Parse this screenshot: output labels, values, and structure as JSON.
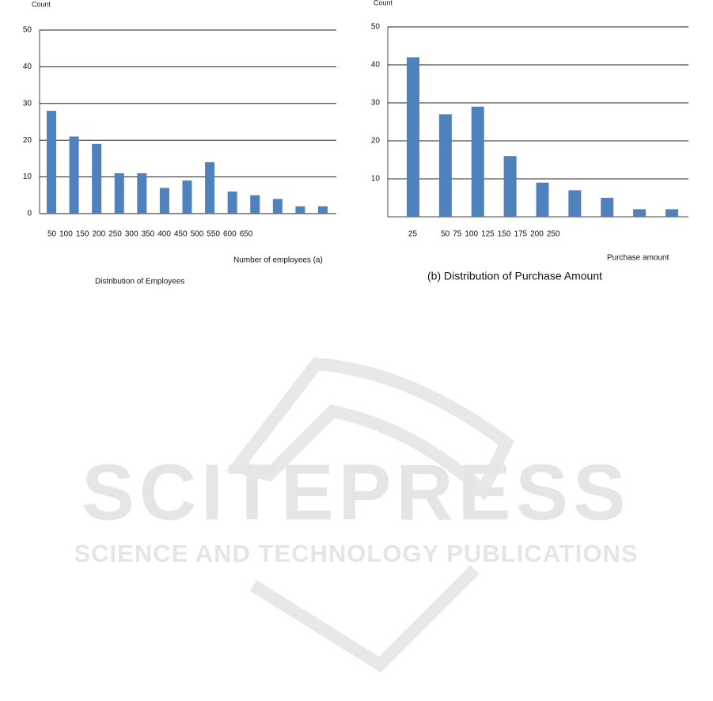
{
  "chart_data": [
    {
      "type": "bar",
      "y_label": "Count",
      "x_label": "Number of employees (a)",
      "caption": "Distribution of Employees",
      "categories": [
        "50",
        "100",
        "150",
        "200",
        "250",
        "300",
        "350",
        "400",
        "450",
        "500",
        "550",
        "600",
        "650"
      ],
      "values": [
        28,
        21,
        19,
        11,
        11,
        7,
        9,
        14,
        6,
        5,
        4,
        2,
        2
      ],
      "color": "#4f81bd",
      "ylim": [
        0,
        50
      ],
      "yticks": [
        0,
        10,
        20,
        30,
        40,
        50
      ],
      "grid": true
    },
    {
      "type": "bar",
      "y_label": "Count",
      "x_label": "Purchase amount",
      "caption": "(b) Distribution of Purchase Amount",
      "categories": [
        "25",
        "50",
        "75",
        "100",
        "125",
        "150",
        "175",
        "200",
        "250"
      ],
      "values": [
        42,
        27,
        29,
        16,
        9,
        7,
        5,
        2,
        2
      ],
      "color": "#4f81bd",
      "ylim": [
        0,
        50
      ],
      "yticks": [
        10,
        20,
        30,
        40,
        50
      ],
      "grid": true
    }
  ],
  "watermark": {
    "title": "SCITEPRESS",
    "subtitle": "SCIENCE AND TECHNOLOGY PUBLICATIONS"
  }
}
